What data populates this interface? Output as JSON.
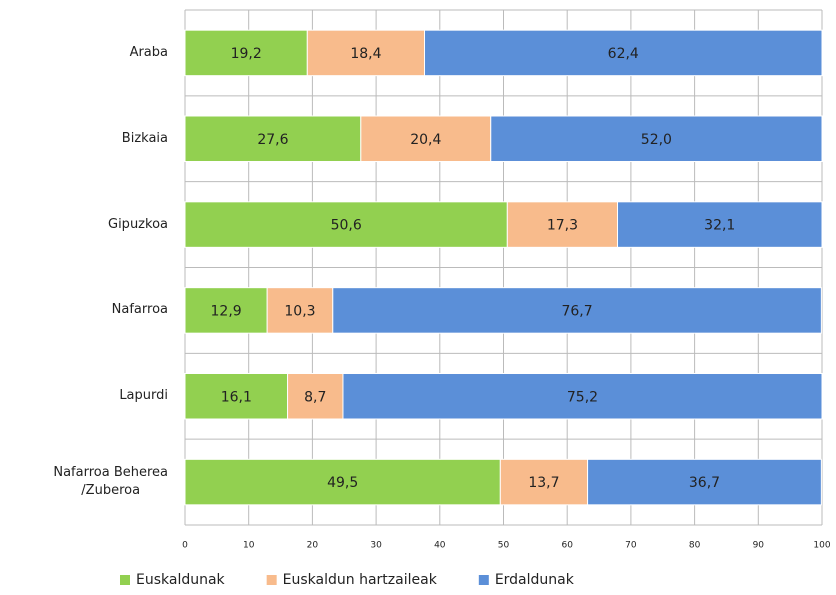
{
  "chart_data": {
    "type": "stacked-barh",
    "categories": [
      "Araba",
      "Bizkaia",
      "Gipuzkoa",
      "Nafarroa",
      "Lapurdi",
      "Nafarroa Beherea\n/Zuberoa"
    ],
    "series": [
      {
        "name": "Euskaldunak",
        "color": "#92d050",
        "values": [
          19.2,
          27.6,
          50.6,
          12.9,
          16.1,
          49.5
        ],
        "value_labels": [
          "19,2",
          "27,6",
          "50,6",
          "12,9",
          "16,1",
          "49,5"
        ]
      },
      {
        "name": "Euskaldun hartzaileak",
        "color": "#f8bb8c",
        "values": [
          18.4,
          20.4,
          17.3,
          10.3,
          8.7,
          13.7
        ],
        "value_labels": [
          "18,4",
          "20,4",
          "17,3",
          "10,3",
          "8,7",
          "13,7"
        ]
      },
      {
        "name": "Erdaldunak",
        "color": "#5b8fd8",
        "values": [
          62.4,
          52.0,
          32.1,
          76.7,
          75.2,
          36.7
        ],
        "value_labels": [
          "62,4",
          "52,0",
          "32,1",
          "76,7",
          "75,2",
          "36,7"
        ]
      }
    ],
    "xlim": [
      0,
      100
    ],
    "xticks": [
      0,
      10,
      20,
      30,
      40,
      50,
      60,
      70,
      80,
      90,
      100
    ],
    "grid": true,
    "legend": "bottom"
  }
}
